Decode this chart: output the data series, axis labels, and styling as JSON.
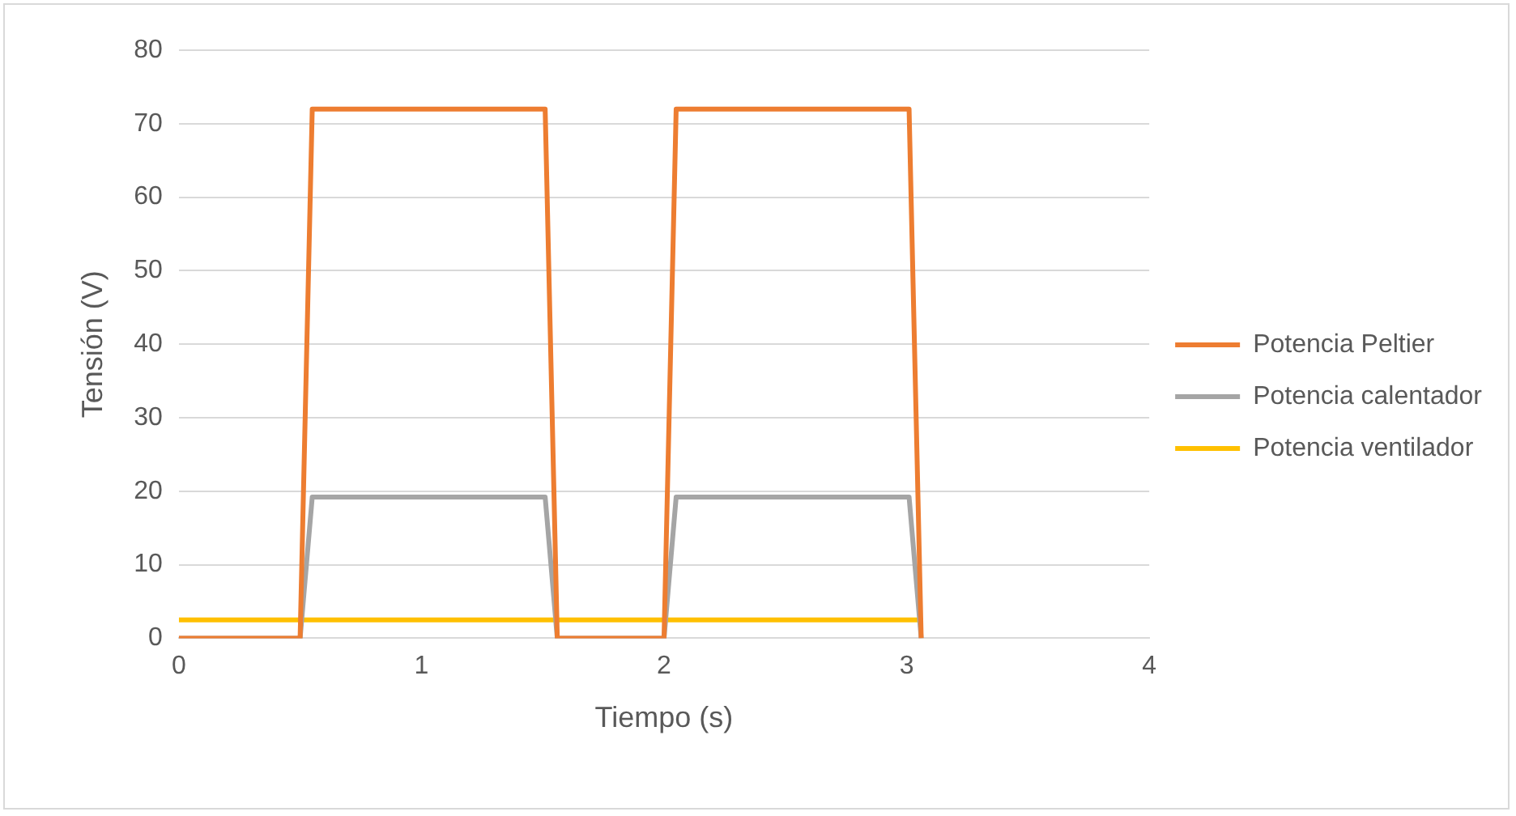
{
  "chart_data": {
    "type": "line",
    "xlabel": "Tiempo (s)",
    "ylabel": "Tensión (V)",
    "xlim": [
      0,
      4
    ],
    "xticks": [
      0,
      1,
      2,
      3,
      4
    ],
    "ylim": [
      0,
      80
    ],
    "yticks": [
      0,
      10,
      20,
      30,
      40,
      50,
      60,
      70,
      80
    ],
    "grid": "y",
    "legend": "right",
    "marker": "none",
    "line_style": "solid",
    "series": [
      {
        "name": "Potencia Peltier",
        "color": "#ed7d31",
        "x": [
          0,
          0.5,
          0.55,
          1.51,
          1.56,
          2.0,
          2.05,
          3.01,
          3.06
        ],
        "values": [
          0,
          0,
          72,
          72,
          0,
          0,
          72,
          72,
          0
        ]
      },
      {
        "name": "Potencia calentador",
        "color": "#a5a5a5",
        "x": [
          0,
          0.5,
          0.55,
          1.51,
          1.56,
          2.0,
          2.05,
          3.01,
          3.06
        ],
        "values": [
          0,
          0,
          19.2,
          19.2,
          0,
          0,
          19.2,
          19.2,
          0
        ]
      },
      {
        "name": "Potencia ventilador",
        "color": "#ffc000",
        "x": [
          0,
          3.06
        ],
        "values": [
          2.5,
          2.5
        ]
      }
    ]
  }
}
